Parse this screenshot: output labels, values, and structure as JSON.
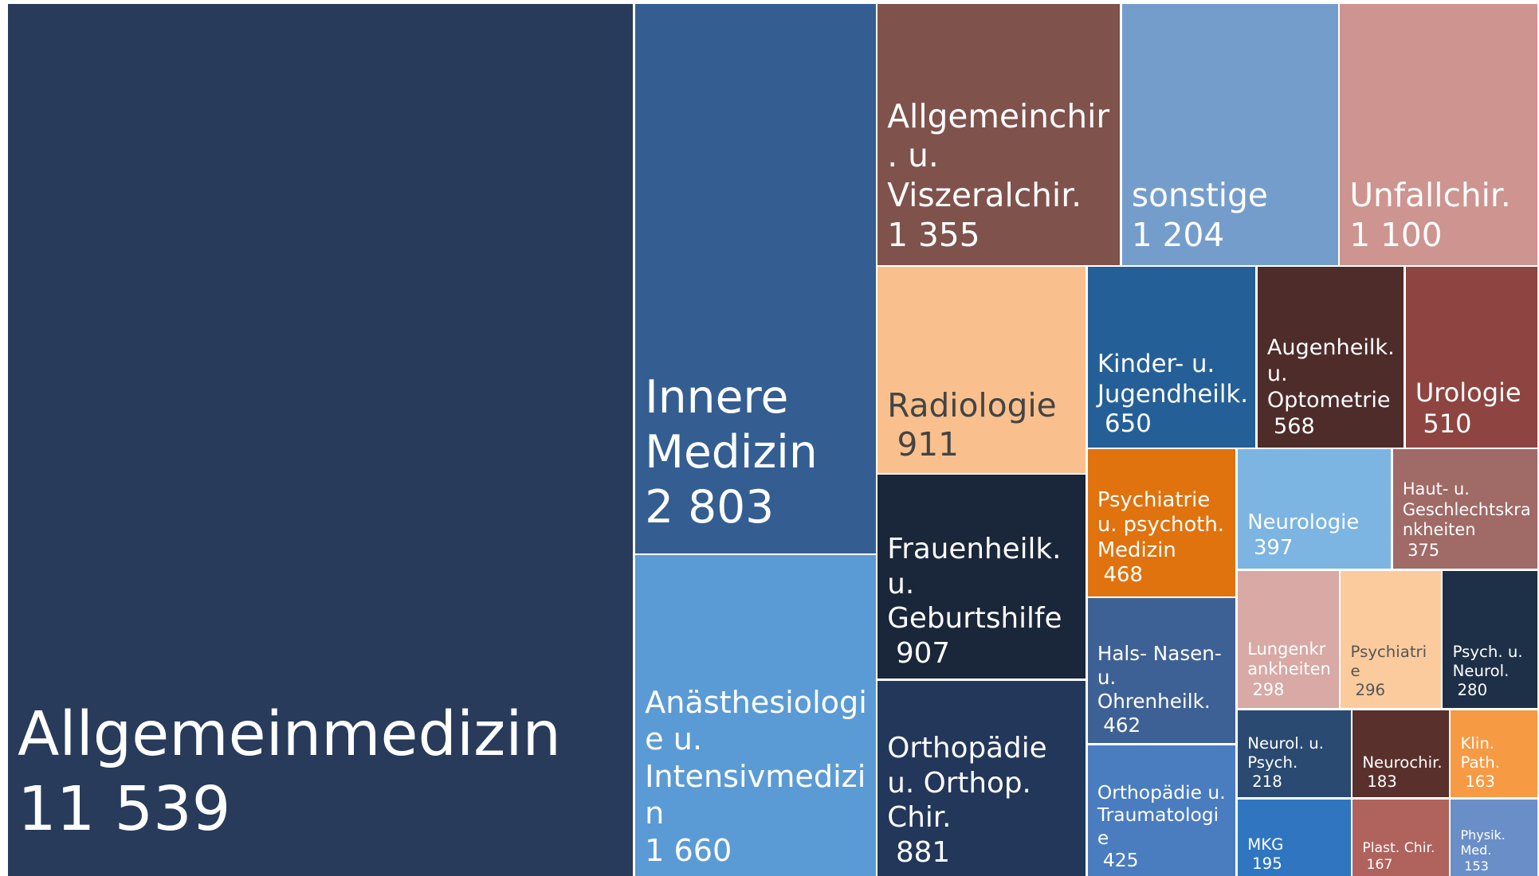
{
  "chart_data": {
    "type": "treemap",
    "labels": [
      "Allgemeinmedizin",
      "Innere Medizin",
      "Anästhesiologie u. Intensivmedizin",
      "Allgemeinchir. u. Viszeralchir.",
      "sonstige",
      "Unfallchir.",
      "Radiologie",
      "Frauenheilk. u. Geburtshilfe",
      "Orthopädie u. Orthop. Chir.",
      "Kinder- u. Jugendheilk.",
      "Augenheilk. u. Optometrie",
      "Urologie",
      "Psychiatrie u. psychoth. Medizin",
      "Hals- Nasen- u. Ohrenheilk.",
      "Orthopädie u. Traumatologie",
      "Neurologie",
      "Haut- u. Geschlechtskrankheiten",
      "Lungenkrankheiten",
      "Psychiatrie",
      "Psych. u. Neurol.",
      "Neurol. u. Psych.",
      "Neurochir.",
      "Klin. Path.",
      "MKG",
      "Plast. Chir.",
      "Physik. Med."
    ],
    "values": [
      11539,
      2803,
      1660,
      1355,
      1204,
      1100,
      911,
      907,
      881,
      650,
      568,
      510,
      468,
      462,
      425,
      397,
      375,
      298,
      296,
      280,
      218,
      183,
      163,
      195,
      167,
      153
    ],
    "value_labels": [
      "11 539",
      "2 803",
      "1 660",
      "1 355",
      "1 204",
      "1 100",
      "911",
      "907",
      "881",
      "650",
      "568",
      "510",
      "468",
      "462",
      "425",
      "397",
      "375",
      "298",
      "296",
      "280",
      "218",
      "183",
      "163",
      "195",
      "167",
      "153"
    ],
    "colors": [
      "#283b5b",
      "#345e91",
      "#5b9bd5",
      "#80524c",
      "#759dcc",
      "#cd9490",
      "#f9c08d",
      "#1a2639",
      "#22375a",
      "#255f97",
      "#4e2c2a",
      "#8e4440",
      "#e0730e",
      "#3e6195",
      "#4a7cc0",
      "#7cb4e2",
      "#a06a66",
      "#d8a9a5",
      "#fbcb9e",
      "#1e3048",
      "#2a4a72",
      "#5a302c",
      "#f79a44",
      "#2f75c0",
      "#b0625c",
      "#6a8fc8"
    ]
  }
}
